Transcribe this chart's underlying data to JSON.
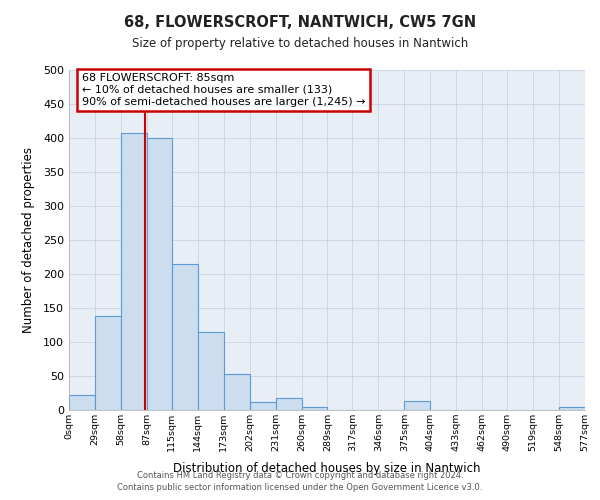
{
  "title": "68, FLOWERSCROFT, NANTWICH, CW5 7GN",
  "subtitle": "Size of property relative to detached houses in Nantwich",
  "xlabel": "Distribution of detached houses by size in Nantwich",
  "ylabel": "Number of detached properties",
  "bin_edges": [
    0,
    29,
    58,
    87,
    115,
    144,
    173,
    202,
    231,
    260,
    289,
    317,
    346,
    375,
    404,
    433,
    462,
    490,
    519,
    548,
    577
  ],
  "bin_labels": [
    "0sqm",
    "29sqm",
    "58sqm",
    "87sqm",
    "115sqm",
    "144sqm",
    "173sqm",
    "202sqm",
    "231sqm",
    "260sqm",
    "289sqm",
    "317sqm",
    "346sqm",
    "375sqm",
    "404sqm",
    "433sqm",
    "462sqm",
    "490sqm",
    "519sqm",
    "548sqm",
    "577sqm"
  ],
  "counts": [
    22,
    138,
    408,
    400,
    215,
    115,
    53,
    12,
    17,
    5,
    0,
    0,
    0,
    13,
    0,
    0,
    0,
    0,
    0,
    5
  ],
  "bar_color": "#ccddf0",
  "bar_edge_color": "#5b9bd5",
  "property_line_x": 85,
  "property_line_color": "#cc0000",
  "ylim": [
    0,
    500
  ],
  "yticks": [
    0,
    50,
    100,
    150,
    200,
    250,
    300,
    350,
    400,
    450,
    500
  ],
  "annotation_title": "68 FLOWERSCROFT: 85sqm",
  "annotation_line1": "← 10% of detached houses are smaller (133)",
  "annotation_line2": "90% of semi-detached houses are larger (1,245) →",
  "annotation_box_color": "#cc0000",
  "footer_line1": "Contains HM Land Registry data © Crown copyright and database right 2024.",
  "footer_line2": "Contains public sector information licensed under the Open Government Licence v3.0.",
  "fig_bg_color": "#ffffff",
  "plot_bg_color": "#e8eef5"
}
